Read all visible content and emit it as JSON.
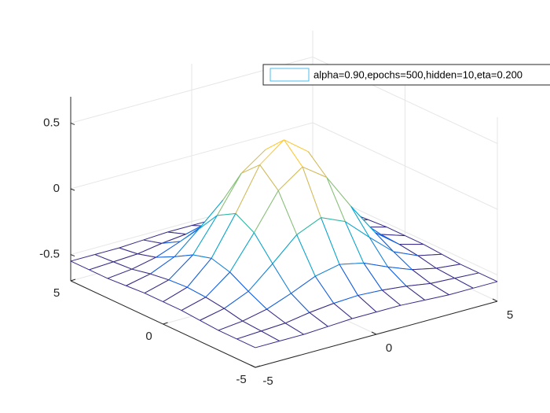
{
  "chart_data": {
    "type": "mesh",
    "x": [
      -5,
      -4,
      -3,
      -2,
      -1,
      0,
      1,
      2,
      3,
      4,
      5
    ],
    "y": [
      -5,
      -4,
      -3,
      -2,
      -1,
      0,
      1,
      2,
      3,
      4,
      5
    ],
    "series": [
      {
        "name": "alpha=0.90,epochs=500,hidden=10,eta=0.200",
        "z": [
          [
            -0.55,
            -0.55,
            -0.55,
            -0.54,
            -0.53,
            -0.53,
            -0.53,
            -0.54,
            -0.55,
            -0.55,
            -0.55
          ],
          [
            -0.55,
            -0.54,
            -0.53,
            -0.5,
            -0.48,
            -0.47,
            -0.48,
            -0.5,
            -0.53,
            -0.54,
            -0.55
          ],
          [
            -0.55,
            -0.53,
            -0.49,
            -0.42,
            -0.34,
            -0.3,
            -0.34,
            -0.42,
            -0.49,
            -0.53,
            -0.55
          ],
          [
            -0.54,
            -0.5,
            -0.42,
            -0.26,
            -0.09,
            -0.01,
            -0.09,
            -0.26,
            -0.42,
            -0.5,
            -0.54
          ],
          [
            -0.53,
            -0.48,
            -0.34,
            -0.09,
            0.18,
            0.31,
            0.18,
            -0.09,
            -0.34,
            -0.48,
            -0.53
          ],
          [
            -0.53,
            -0.47,
            -0.3,
            -0.01,
            0.31,
            0.45,
            0.31,
            -0.01,
            -0.3,
            -0.47,
            -0.53
          ],
          [
            -0.53,
            -0.48,
            -0.34,
            -0.09,
            0.18,
            0.31,
            0.18,
            -0.09,
            -0.34,
            -0.48,
            -0.53
          ],
          [
            -0.54,
            -0.5,
            -0.42,
            -0.26,
            -0.09,
            -0.01,
            -0.09,
            -0.26,
            -0.42,
            -0.5,
            -0.54
          ],
          [
            -0.55,
            -0.53,
            -0.49,
            -0.42,
            -0.34,
            -0.3,
            -0.34,
            -0.42,
            -0.49,
            -0.53,
            -0.55
          ],
          [
            -0.55,
            -0.54,
            -0.53,
            -0.5,
            -0.48,
            -0.47,
            -0.48,
            -0.5,
            -0.53,
            -0.54,
            -0.55
          ],
          [
            -0.55,
            -0.55,
            -0.55,
            -0.54,
            -0.53,
            -0.53,
            -0.53,
            -0.54,
            -0.55,
            -0.55,
            -0.55
          ]
        ]
      }
    ],
    "xlim": [
      -5,
      5
    ],
    "ylim": [
      -5,
      5
    ],
    "zlim": [
      -0.7,
      0.7
    ],
    "xticks": [
      -5,
      0,
      5
    ],
    "yticks": [
      -5,
      0,
      5
    ],
    "zticks": [
      -0.5,
      0,
      0.5
    ],
    "grid": true,
    "legend": "northeast",
    "colormap": [
      "#352a87",
      "#0f5cdd",
      "#1481d6",
      "#06a4ca",
      "#2eb7a4",
      "#87bf77",
      "#d1bb59",
      "#fec832",
      "#f9fb0e"
    ],
    "legend_color": "#4dbeee"
  }
}
